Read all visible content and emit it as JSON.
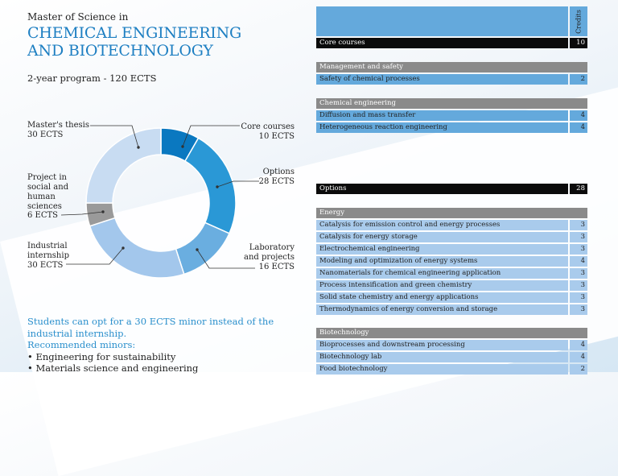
{
  "header": {
    "subtitle": "Master of Science in",
    "title_line1": "CHEMICAL ENGINEERING",
    "title_line2": "AND BIOTECHNOLOGY",
    "program": "2-year program - 120 ECTS"
  },
  "chart_data": {
    "type": "pie",
    "variant": "donut",
    "total": 120,
    "unit": "ECTS",
    "direction": "clockwise from top",
    "slices": [
      {
        "label": "Core courses",
        "value": 10,
        "text": "10 ECTS",
        "color": "#0a78c0"
      },
      {
        "label": "Options",
        "value": 28,
        "text": "28 ECTS",
        "color": "#2a98d6"
      },
      {
        "label": "Laboratory and projects",
        "value": 16,
        "text": "16 ECTS",
        "color": "#6aaee0"
      },
      {
        "label": "Industrial internship",
        "value": 30,
        "text": "30 ECTS",
        "color": "#a3c7ec"
      },
      {
        "label": "Project in social and human sciences",
        "value": 6,
        "text": "6 ECTS",
        "color": "#9a9a9a"
      },
      {
        "label": "Master's thesis",
        "value": 30,
        "text": "30 ECTS",
        "color": "#c8dcf2"
      }
    ]
  },
  "note": {
    "line1": "Students can opt for a 30 ECTS minor instead of the industrial internship.",
    "line2": "Recommended minors:",
    "minors": [
      "Engineering for sustainability",
      "Materials science and engineering"
    ]
  },
  "table": {
    "credits_header": "Credits",
    "core": {
      "label": "Core courses",
      "credits": "10"
    },
    "management": {
      "label": "Management and safety",
      "rows": [
        {
          "name": "Safety of chemical processes",
          "credits": "2"
        }
      ]
    },
    "chemical": {
      "label": "Chemical engineering",
      "rows": [
        {
          "name": "Diffusion and mass transfer",
          "credits": "4"
        },
        {
          "name": "Heterogeneous reaction engineering",
          "credits": "4"
        }
      ]
    },
    "options": {
      "label": "Options",
      "credits": "28"
    },
    "energy": {
      "label": "Energy",
      "rows": [
        {
          "name": "Catalysis for emission control and energy processes",
          "credits": "3"
        },
        {
          "name": "Catalysis for energy storage",
          "credits": "3"
        },
        {
          "name": "Electrochemical engineering",
          "credits": "3"
        },
        {
          "name": "Modeling and optimization of energy systems",
          "credits": "4"
        },
        {
          "name": "Nanomaterials for chemical engineering application",
          "credits": "3"
        },
        {
          "name": "Process intensification and green chemistry",
          "credits": "3"
        },
        {
          "name": "Solid state chemistry and energy applications",
          "credits": "3"
        },
        {
          "name": "Thermodynamics of energy conversion and storage",
          "credits": "3"
        }
      ]
    },
    "biotech": {
      "label": "Biotechnology",
      "rows": [
        {
          "name": "Bioprocesses and downstream processing",
          "credits": "4"
        },
        {
          "name": "Biotechnology lab",
          "credits": "4"
        },
        {
          "name": "Food biotechnology",
          "credits": "2"
        }
      ]
    }
  }
}
